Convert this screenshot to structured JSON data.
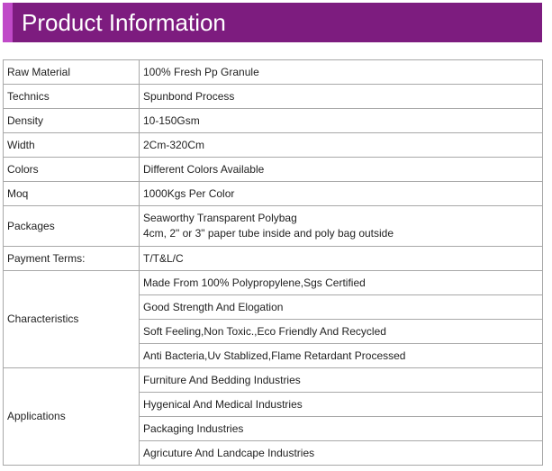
{
  "header": {
    "title": "Product Information",
    "color": "#7d1c7f",
    "accent_color": "#c04ac8"
  },
  "rows": [
    {
      "label": "Raw Material",
      "value": "100% Fresh Pp Granule"
    },
    {
      "label": "Technics",
      "value": "Spunbond Process"
    },
    {
      "label": "Density",
      "value": "10-150Gsm"
    },
    {
      "label": "Width",
      "value": "2Cm-320Cm"
    },
    {
      "label": "Colors",
      "value": "Different Colors Available"
    },
    {
      "label": "Moq",
      "value": "1000Kgs Per Color"
    },
    {
      "label": "Packages",
      "line1": "Seaworthy Transparent Polybag",
      "line2": "4cm, 2\" or 3\" paper tube inside and poly bag outside"
    },
    {
      "label": "Payment Terms:",
      "value": "T/T&L/C"
    }
  ],
  "characteristics": {
    "label": "Characteristics",
    "items": [
      "Made From 100% Polypropylene,Sgs Certified",
      "Good Strength And Elogation",
      "Soft Feeling,Non Toxic.,Eco Friendly And Recycled",
      "Anti Bacteria,Uv Stablized,Flame Retardant Processed"
    ]
  },
  "applications": {
    "label": "Applications",
    "items": [
      "Furniture And Bedding Industries",
      "Hygenical And Medical Industries",
      "Packaging Industries",
      "Agricuture And Landcape Industries"
    ]
  }
}
